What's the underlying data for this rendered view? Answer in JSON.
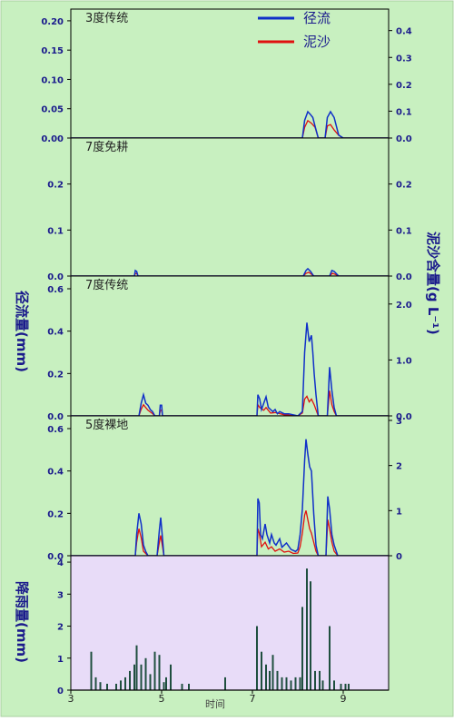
{
  "chart_data": {
    "type": "line",
    "xlabel": "时间",
    "x_ticks": [
      "3",
      "5",
      "7",
      "9"
    ],
    "xlim": [
      3,
      10
    ],
    "left_axis_label": "径流量(mm)",
    "right_axis_label": "泥沙含量(g L⁻¹)",
    "rain_axis_label": "降雨量(mm)",
    "legend": [
      {
        "name": "径流",
        "color": "#1030c8"
      },
      {
        "name": "泥沙",
        "color": "#e01010"
      }
    ],
    "panels": [
      {
        "title": "3度传统",
        "left_ylim": [
          0,
          0.22
        ],
        "left_ticks": [
          "0.00",
          "0.05",
          "0.10",
          "0.15",
          "0.20"
        ],
        "left_tick_values": [
          0,
          0.05,
          0.1,
          0.15,
          0.2
        ],
        "right_ylim": [
          0,
          0.48
        ],
        "right_ticks": [
          "0.0",
          "0.1",
          "0.2",
          "0.3",
          "0.4"
        ],
        "right_tick_values": [
          0,
          0.1,
          0.2,
          0.3,
          0.4
        ],
        "runoff": [
          [
            3.0,
            0
          ],
          [
            8.1,
            0
          ],
          [
            8.15,
            0.03
          ],
          [
            8.22,
            0.045
          ],
          [
            8.28,
            0.04
          ],
          [
            8.33,
            0.035
          ],
          [
            8.38,
            0.02
          ],
          [
            8.45,
            0
          ],
          [
            8.6,
            0
          ],
          [
            8.65,
            0.035
          ],
          [
            8.72,
            0.045
          ],
          [
            8.8,
            0.035
          ],
          [
            8.85,
            0.02
          ],
          [
            8.9,
            0.005
          ],
          [
            9.0,
            0
          ],
          [
            10,
            0
          ]
        ],
        "sediment": [
          [
            3.0,
            0
          ],
          [
            8.1,
            0
          ],
          [
            8.15,
            0.04
          ],
          [
            8.22,
            0.065
          ],
          [
            8.3,
            0.055
          ],
          [
            8.38,
            0.04
          ],
          [
            8.45,
            0
          ],
          [
            8.6,
            0
          ],
          [
            8.65,
            0.045
          ],
          [
            8.72,
            0.05
          ],
          [
            8.8,
            0.03
          ],
          [
            8.9,
            0.01
          ],
          [
            9.0,
            0
          ],
          [
            10,
            0
          ]
        ]
      },
      {
        "title": "7度免耕",
        "left_ylim": [
          0,
          0.3
        ],
        "left_ticks": [
          "0.0",
          "0.1",
          "0.2"
        ],
        "left_tick_values": [
          0,
          0.1,
          0.2
        ],
        "right_ylim": [
          0,
          0.3
        ],
        "right_ticks": [
          "0.0",
          "0.1",
          "0.2"
        ],
        "right_tick_values": [
          0,
          0.1,
          0.2
        ],
        "runoff": [
          [
            3.0,
            0
          ],
          [
            4.4,
            0
          ],
          [
            4.42,
            0.012
          ],
          [
            4.45,
            0.01
          ],
          [
            4.48,
            0
          ],
          [
            8.12,
            0
          ],
          [
            8.18,
            0.012
          ],
          [
            8.22,
            0.016
          ],
          [
            8.28,
            0.01
          ],
          [
            8.35,
            0
          ],
          [
            8.7,
            0
          ],
          [
            8.75,
            0.012
          ],
          [
            8.8,
            0.01
          ],
          [
            8.86,
            0.004
          ],
          [
            8.9,
            0
          ],
          [
            10,
            0
          ]
        ],
        "sediment": [
          [
            3.0,
            0
          ],
          [
            4.4,
            0
          ],
          [
            4.42,
            0.006
          ],
          [
            4.46,
            0.005
          ],
          [
            4.48,
            0
          ],
          [
            8.12,
            0
          ],
          [
            8.18,
            0.006
          ],
          [
            8.24,
            0.008
          ],
          [
            8.3,
            0.004
          ],
          [
            8.35,
            0
          ],
          [
            8.7,
            0
          ],
          [
            8.76,
            0.006
          ],
          [
            8.82,
            0.004
          ],
          [
            8.9,
            0
          ],
          [
            10,
            0
          ]
        ]
      },
      {
        "title": "7度传统",
        "left_ylim": [
          0,
          0.66
        ],
        "left_ticks": [
          "0.0",
          "0.2",
          "0.4",
          "0.6"
        ],
        "left_tick_values": [
          0,
          0.2,
          0.4,
          0.6
        ],
        "right_ylim": [
          0,
          2.5
        ],
        "right_ticks": [
          "0.0",
          "1.0",
          "2.0"
        ],
        "right_tick_values": [
          0,
          1.0,
          2.0
        ],
        "runoff": [
          [
            3.0,
            0
          ],
          [
            4.5,
            0
          ],
          [
            4.55,
            0.06
          ],
          [
            4.6,
            0.1
          ],
          [
            4.65,
            0.06
          ],
          [
            4.7,
            0.05
          ],
          [
            4.75,
            0.03
          ],
          [
            4.8,
            0.02
          ],
          [
            4.85,
            0
          ],
          [
            4.95,
            0
          ],
          [
            4.97,
            0.05
          ],
          [
            5.0,
            0.05
          ],
          [
            5.02,
            0
          ],
          [
            7.1,
            0
          ],
          [
            7.12,
            0.1
          ],
          [
            7.16,
            0.08
          ],
          [
            7.2,
            0.03
          ],
          [
            7.25,
            0.06
          ],
          [
            7.3,
            0.09
          ],
          [
            7.35,
            0.04
          ],
          [
            7.4,
            0.03
          ],
          [
            7.45,
            0.02
          ],
          [
            7.5,
            0.03
          ],
          [
            7.55,
            0.01
          ],
          [
            7.6,
            0.02
          ],
          [
            7.7,
            0.01
          ],
          [
            7.8,
            0.01
          ],
          [
            8.0,
            0
          ],
          [
            8.1,
            0.02
          ],
          [
            8.15,
            0.3
          ],
          [
            8.2,
            0.44
          ],
          [
            8.25,
            0.35
          ],
          [
            8.3,
            0.38
          ],
          [
            8.33,
            0.3
          ],
          [
            8.36,
            0.2
          ],
          [
            8.4,
            0.1
          ],
          [
            8.45,
            0
          ],
          [
            8.65,
            0
          ],
          [
            8.7,
            0.23
          ],
          [
            8.75,
            0.12
          ],
          [
            8.8,
            0.04
          ],
          [
            8.85,
            0
          ],
          [
            10,
            0
          ]
        ],
        "sediment": [
          [
            3.0,
            0
          ],
          [
            4.5,
            0
          ],
          [
            4.55,
            0.12
          ],
          [
            4.6,
            0.2
          ],
          [
            4.65,
            0.15
          ],
          [
            4.7,
            0.1
          ],
          [
            4.8,
            0.04
          ],
          [
            4.85,
            0
          ],
          [
            4.95,
            0
          ],
          [
            4.97,
            0.1
          ],
          [
            5.0,
            0.1
          ],
          [
            5.02,
            0
          ],
          [
            7.1,
            0
          ],
          [
            7.12,
            0.2
          ],
          [
            7.16,
            0.15
          ],
          [
            7.25,
            0.1
          ],
          [
            7.3,
            0.15
          ],
          [
            7.4,
            0.05
          ],
          [
            7.5,
            0.06
          ],
          [
            7.6,
            0.04
          ],
          [
            7.7,
            0.02
          ],
          [
            8.0,
            0
          ],
          [
            8.1,
            0.05
          ],
          [
            8.15,
            0.3
          ],
          [
            8.2,
            0.35
          ],
          [
            8.25,
            0.25
          ],
          [
            8.3,
            0.3
          ],
          [
            8.36,
            0.2
          ],
          [
            8.45,
            0
          ],
          [
            8.65,
            0
          ],
          [
            8.7,
            0.45
          ],
          [
            8.75,
            0.2
          ],
          [
            8.8,
            0.08
          ],
          [
            8.85,
            0
          ],
          [
            10,
            0
          ]
        ]
      },
      {
        "title": "5度裸地",
        "left_ylim": [
          0,
          0.66
        ],
        "left_ticks": [
          "0.0",
          "0.2",
          "0.4",
          "0.6"
        ],
        "left_tick_values": [
          0,
          0.2,
          0.4,
          0.6
        ],
        "right_ylim": [
          0,
          3.1
        ],
        "right_ticks": [
          "0",
          "1",
          "2",
          "3"
        ],
        "right_tick_values": [
          0,
          1,
          2,
          3
        ],
        "runoff": [
          [
            3.0,
            0
          ],
          [
            4.42,
            0
          ],
          [
            4.45,
            0.1
          ],
          [
            4.5,
            0.2
          ],
          [
            4.55,
            0.15
          ],
          [
            4.6,
            0.05
          ],
          [
            4.65,
            0.02
          ],
          [
            4.7,
            0
          ],
          [
            4.9,
            0
          ],
          [
            4.95,
            0.12
          ],
          [
            4.98,
            0.18
          ],
          [
            5.02,
            0.08
          ],
          [
            5.05,
            0
          ],
          [
            7.1,
            0
          ],
          [
            7.12,
            0.27
          ],
          [
            7.15,
            0.25
          ],
          [
            7.18,
            0.1
          ],
          [
            7.22,
            0.08
          ],
          [
            7.28,
            0.15
          ],
          [
            7.32,
            0.1
          ],
          [
            7.38,
            0.06
          ],
          [
            7.42,
            0.1
          ],
          [
            7.48,
            0.06
          ],
          [
            7.52,
            0.05
          ],
          [
            7.6,
            0.08
          ],
          [
            7.65,
            0.04
          ],
          [
            7.75,
            0.06
          ],
          [
            7.85,
            0.03
          ],
          [
            7.95,
            0.02
          ],
          [
            8.0,
            0.03
          ],
          [
            8.05,
            0.1
          ],
          [
            8.1,
            0.22
          ],
          [
            8.15,
            0.45
          ],
          [
            8.18,
            0.55
          ],
          [
            8.22,
            0.48
          ],
          [
            8.26,
            0.42
          ],
          [
            8.3,
            0.4
          ],
          [
            8.35,
            0.2
          ],
          [
            8.4,
            0.05
          ],
          [
            8.45,
            0
          ],
          [
            8.62,
            0
          ],
          [
            8.66,
            0.28
          ],
          [
            8.7,
            0.22
          ],
          [
            8.75,
            0.1
          ],
          [
            8.8,
            0.05
          ],
          [
            8.88,
            0
          ],
          [
            10,
            0
          ]
        ],
        "sediment": [
          [
            3.0,
            0
          ],
          [
            4.42,
            0
          ],
          [
            4.45,
            0.3
          ],
          [
            4.5,
            0.6
          ],
          [
            4.55,
            0.4
          ],
          [
            4.6,
            0.1
          ],
          [
            4.7,
            0
          ],
          [
            4.9,
            0
          ],
          [
            4.95,
            0.3
          ],
          [
            4.98,
            0.45
          ],
          [
            5.02,
            0.2
          ],
          [
            5.05,
            0
          ],
          [
            7.1,
            0
          ],
          [
            7.12,
            0.6
          ],
          [
            7.15,
            0.5
          ],
          [
            7.2,
            0.2
          ],
          [
            7.28,
            0.3
          ],
          [
            7.35,
            0.15
          ],
          [
            7.42,
            0.2
          ],
          [
            7.5,
            0.1
          ],
          [
            7.6,
            0.15
          ],
          [
            7.7,
            0.08
          ],
          [
            7.8,
            0.1
          ],
          [
            7.9,
            0.05
          ],
          [
            8.0,
            0.06
          ],
          [
            8.05,
            0.2
          ],
          [
            8.1,
            0.5
          ],
          [
            8.15,
            0.9
          ],
          [
            8.18,
            1.0
          ],
          [
            8.22,
            0.8
          ],
          [
            8.26,
            0.6
          ],
          [
            8.3,
            0.5
          ],
          [
            8.35,
            0.3
          ],
          [
            8.4,
            0.1
          ],
          [
            8.45,
            0
          ],
          [
            8.62,
            0
          ],
          [
            8.66,
            0.8
          ],
          [
            8.7,
            0.6
          ],
          [
            8.75,
            0.3
          ],
          [
            8.8,
            0.1
          ],
          [
            8.88,
            0
          ],
          [
            10,
            0
          ]
        ]
      }
    ],
    "rainfall": {
      "ylim": [
        0,
        4.2
      ],
      "ticks": [
        "0",
        "1",
        "2",
        "3",
        "4"
      ],
      "tick_values": [
        0,
        1,
        2,
        3,
        4
      ],
      "bars": [
        [
          3.45,
          1.2
        ],
        [
          3.55,
          0.4
        ],
        [
          3.65,
          0.25
        ],
        [
          3.8,
          0.2
        ],
        [
          4.0,
          0.2
        ],
        [
          4.1,
          0.3
        ],
        [
          4.2,
          0.4
        ],
        [
          4.3,
          0.6
        ],
        [
          4.4,
          0.8
        ],
        [
          4.45,
          1.4
        ],
        [
          4.55,
          0.8
        ],
        [
          4.65,
          1.0
        ],
        [
          4.75,
          0.5
        ],
        [
          4.85,
          1.2
        ],
        [
          4.95,
          1.1
        ],
        [
          5.05,
          0.25
        ],
        [
          5.1,
          0.4
        ],
        [
          5.2,
          0.8
        ],
        [
          5.45,
          0.2
        ],
        [
          5.6,
          0.2
        ],
        [
          6.4,
          0.4
        ],
        [
          7.1,
          2.0
        ],
        [
          7.2,
          1.2
        ],
        [
          7.3,
          0.8
        ],
        [
          7.38,
          0.6
        ],
        [
          7.45,
          1.1
        ],
        [
          7.55,
          0.6
        ],
        [
          7.65,
          0.4
        ],
        [
          7.75,
          0.4
        ],
        [
          7.85,
          0.3
        ],
        [
          7.95,
          0.4
        ],
        [
          8.05,
          0.4
        ],
        [
          8.1,
          2.6
        ],
        [
          8.2,
          3.8
        ],
        [
          8.28,
          3.4
        ],
        [
          8.38,
          0.6
        ],
        [
          8.48,
          0.6
        ],
        [
          8.55,
          0.3
        ],
        [
          8.7,
          2.0
        ],
        [
          8.8,
          0.3
        ],
        [
          8.95,
          0.2
        ],
        [
          9.05,
          0.2
        ],
        [
          9.12,
          0.2
        ]
      ]
    }
  }
}
